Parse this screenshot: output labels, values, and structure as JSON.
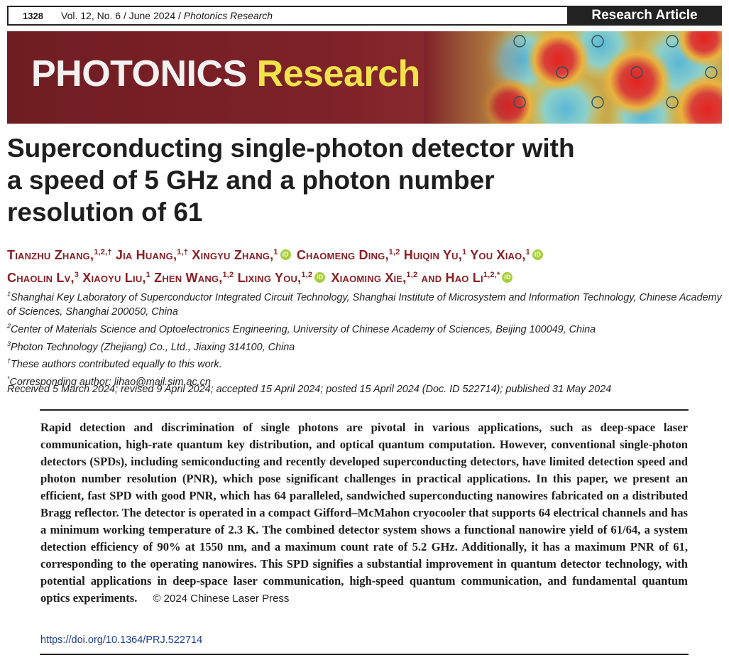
{
  "header": {
    "page_number": "1328",
    "volume_line": "Vol. 12, No. 6 / June 2024 / ",
    "journal_italic": "Photonics Research",
    "article_type": "Research Article"
  },
  "banner": {
    "word1": "PHOTONICS",
    "word2": "Research",
    "accent_color": "#f2e34a",
    "background_color": "#7e2229"
  },
  "title_lines": [
    "Superconducting single-photon detector with",
    "a speed of 5 GHz and a photon number",
    "resolution of 61"
  ],
  "authors": [
    {
      "name": "Tianzhu Zhang,",
      "sup": "1,2,†",
      "orcid": false
    },
    {
      "name": "Jia Huang,",
      "sup": "1,†",
      "orcid": false
    },
    {
      "name": "Xingyu Zhang,",
      "sup": "1",
      "orcid": true
    },
    {
      "name": "Chaomeng Ding,",
      "sup": "1,2",
      "orcid": false
    },
    {
      "name": "Huiqin Yu,",
      "sup": "1",
      "orcid": false
    },
    {
      "name": "You Xiao,",
      "sup": "1",
      "orcid": true
    },
    {
      "name": "Chaolin Lv,",
      "sup": "3",
      "orcid": false
    },
    {
      "name": "Xiaoyu Liu,",
      "sup": "1",
      "orcid": false
    },
    {
      "name": "Zhen Wang,",
      "sup": "1,2",
      "orcid": false
    },
    {
      "name": "Lixing You,",
      "sup": "1,2",
      "orcid": true
    },
    {
      "name": "Xiaoming Xie,",
      "sup": "1,2",
      "orcid": false
    },
    {
      "name": "and Hao Li",
      "sup": "1,2,*",
      "orcid": true
    }
  ],
  "affiliations": [
    {
      "sup": "1",
      "text": "Shanghai Key Laboratory of Superconductor Integrated Circuit Technology, Shanghai Institute of Microsystem and Information Technology, Chinese Academy of Sciences, Shanghai 200050, China"
    },
    {
      "sup": "2",
      "text": "Center of Materials Science and Optoelectronics Engineering, University of Chinese Academy of Sciences, Beijing 100049, China"
    },
    {
      "sup": "3",
      "text": "Photon Technology (Zhejiang) Co., Ltd., Jiaxing 314100, China"
    },
    {
      "sup": "†",
      "text": "These authors contributed equally to this work."
    },
    {
      "sup": "*",
      "text": "Corresponding author: lihao@mail.sim.ac.cn"
    }
  ],
  "received": "Received 5 March 2024; revised 9 April 2024; accepted 15 April 2024; posted 15 April 2024 (Doc. ID 522714); published 31 May 2024",
  "abstract": "Rapid detection and discrimination of single photons are pivotal in various applications, such as deep-space laser communication, high-rate quantum key distribution, and optical quantum computation. However, conventional single-photon detectors (SPDs), including semiconducting and recently developed superconducting detectors, have limited detection speed and photon number resolution (PNR), which pose significant challenges in practical applications. In this paper, we present an efficient, fast SPD with good PNR, which has 64 paralleled, sandwiched superconducting nanowires fabricated on a distributed Bragg reflector. The detector is operated in a compact Gifford–McMahon cryocooler that supports 64 electrical channels and has a minimum working temperature of 2.3 K. The combined detector system shows a functional nanowire yield of 61/64, a system detection efficiency of 90% at 1550 nm, and a maximum count rate of 5.2 GHz. Additionally, it has a maximum PNR of 61, corresponding to the operating nanowires. This SPD signifies a substantial improvement in quantum detector technology, with potential applications in deep-space laser communication, high-speed quantum communication, and fundamental quantum optics experiments.",
  "copyright": "© 2024 Chinese Laser Press",
  "doi": "https://doi.org/10.1364/PRJ.522714"
}
